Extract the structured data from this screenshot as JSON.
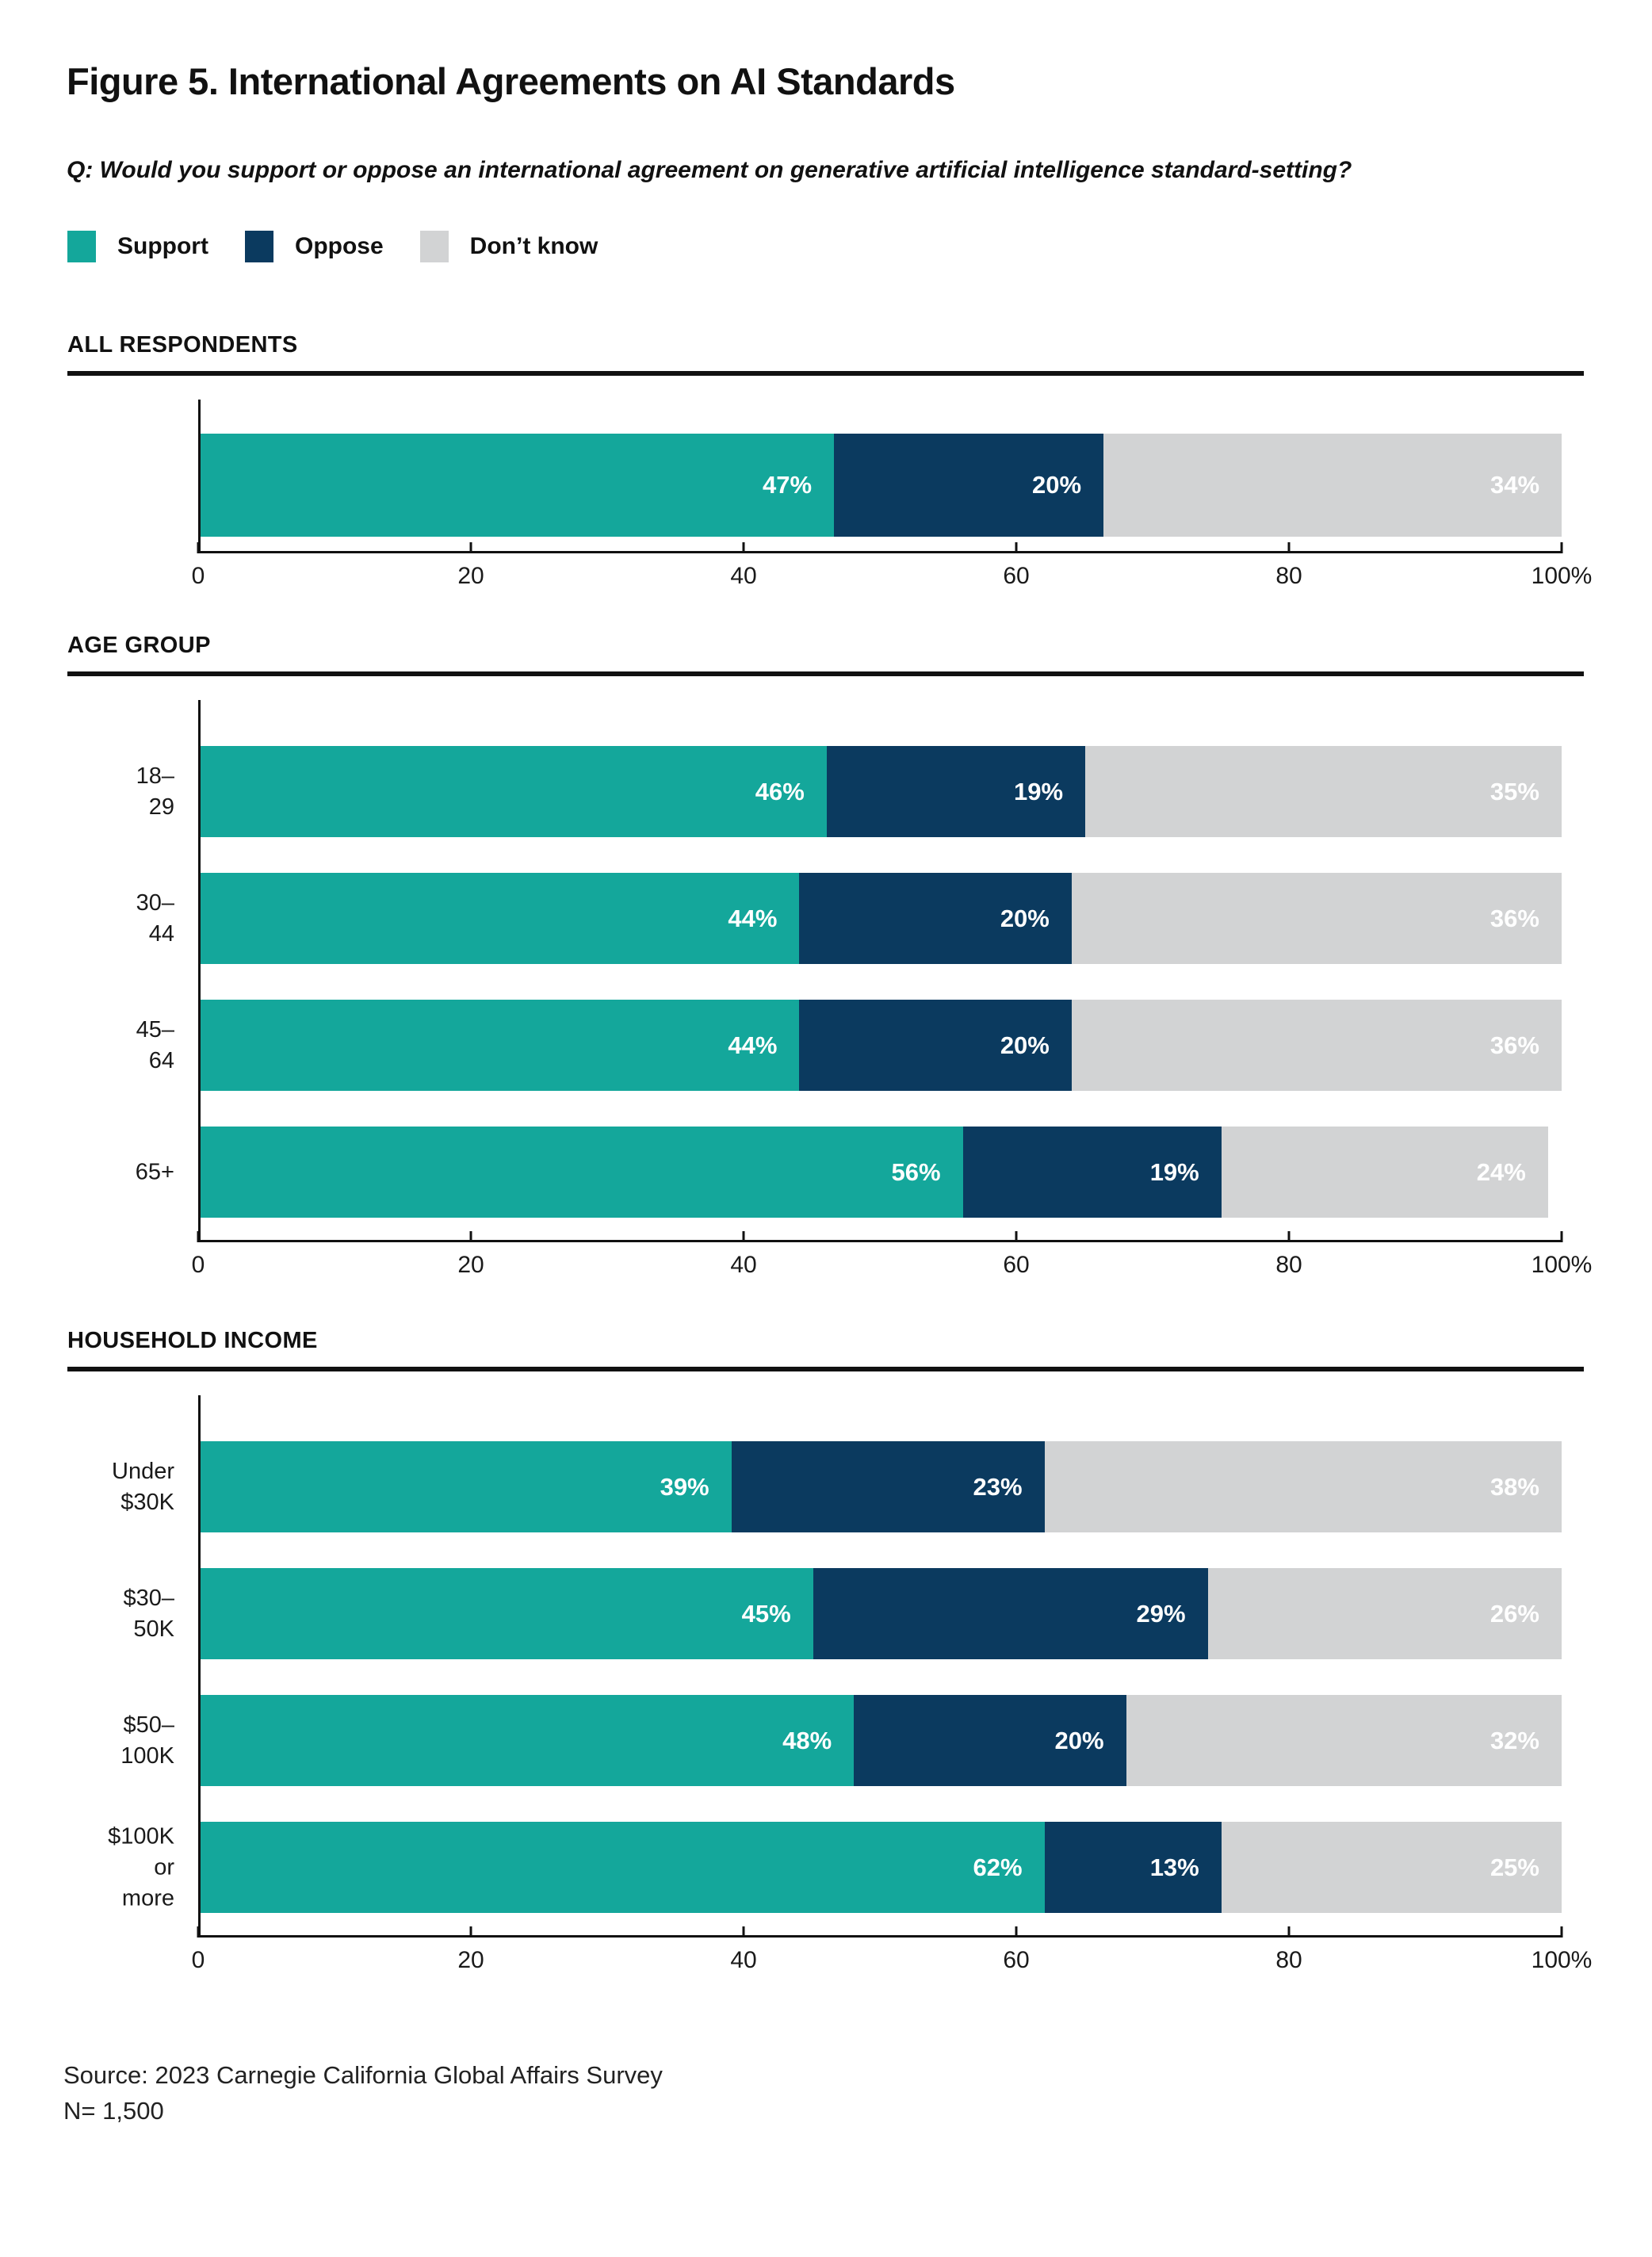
{
  "title": "Figure 5. International Agreements on AI Standards",
  "question": "Q: Would you support or oppose an international agreement on generative artificial intelligence standard-setting?",
  "legend": [
    {
      "label": "Support",
      "color": "#14A79B"
    },
    {
      "label": "Oppose",
      "color": "#0B3A5F"
    },
    {
      "label": "Don’t know",
      "color": "#D2D3D4"
    }
  ],
  "colors": {
    "support": "#14A79B",
    "oppose": "#0B3A5F",
    "dont_know": "#D2D3D4",
    "text": "#111111",
    "bar_label": "#FFFFFF",
    "axis": "#111111"
  },
  "sections": [
    {
      "label": "ALL RESPONDENTS"
    },
    {
      "label": "AGE GROUP"
    },
    {
      "label": "HOUSEHOLD INCOME"
    }
  ],
  "chart_data": [
    {
      "type": "bar",
      "stacked": true,
      "orientation": "horizontal",
      "section": "ALL RESPONDENTS",
      "categories": [
        ""
      ],
      "series": [
        {
          "name": "Support",
          "color": "#14A79B",
          "values": [
            47
          ]
        },
        {
          "name": "Oppose",
          "color": "#0B3A5F",
          "values": [
            20
          ]
        },
        {
          "name": "Don’t know",
          "color": "#D2D3D4",
          "values": [
            34
          ]
        }
      ],
      "value_suffix": "%",
      "xlim": [
        0,
        100
      ],
      "xticks": [
        0,
        20,
        40,
        60,
        80,
        100
      ],
      "xtick_labels": [
        "0",
        "20",
        "40",
        "60",
        "80",
        "100%"
      ],
      "grid": false,
      "legend_position": "top"
    },
    {
      "type": "bar",
      "stacked": true,
      "orientation": "horizontal",
      "section": "AGE GROUP",
      "categories": [
        "18–29",
        "30–44",
        "45–64",
        "65+"
      ],
      "series": [
        {
          "name": "Support",
          "color": "#14A79B",
          "values": [
            46,
            44,
            44,
            56
          ]
        },
        {
          "name": "Oppose",
          "color": "#0B3A5F",
          "values": [
            19,
            20,
            20,
            19
          ]
        },
        {
          "name": "Don’t know",
          "color": "#D2D3D4",
          "values": [
            35,
            36,
            36,
            24
          ]
        }
      ],
      "value_suffix": "%",
      "xlim": [
        0,
        100
      ],
      "xticks": [
        0,
        20,
        40,
        60,
        80,
        100
      ],
      "xtick_labels": [
        "0",
        "20",
        "40",
        "60",
        "80",
        "100%"
      ],
      "grid": false,
      "legend_position": "top"
    },
    {
      "type": "bar",
      "stacked": true,
      "orientation": "horizontal",
      "section": "HOUSEHOLD INCOME",
      "categories": [
        "Under $30K",
        "$30–50K",
        "$50–100K",
        "$100K\nor more"
      ],
      "series": [
        {
          "name": "Support",
          "color": "#14A79B",
          "values": [
            39,
            45,
            48,
            62
          ]
        },
        {
          "name": "Oppose",
          "color": "#0B3A5F",
          "values": [
            23,
            29,
            20,
            13
          ]
        },
        {
          "name": "Don’t know",
          "color": "#D2D3D4",
          "values": [
            38,
            26,
            32,
            25
          ]
        }
      ],
      "value_suffix": "%",
      "xlim": [
        0,
        100
      ],
      "xticks": [
        0,
        20,
        40,
        60,
        80,
        100
      ],
      "xtick_labels": [
        "0",
        "20",
        "40",
        "60",
        "80",
        "100%"
      ],
      "grid": false,
      "legend_position": "top"
    }
  ],
  "source": {
    "line1": "Source: 2023 Carnegie California Global Affairs Survey",
    "line2": "N= 1,500"
  }
}
